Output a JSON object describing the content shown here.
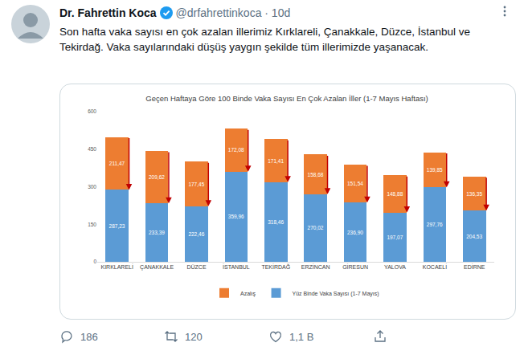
{
  "tweet": {
    "name": "Dr. Fahrettin Koca",
    "handle": "@drfahrettinkoca · 10d",
    "text": "Son hafta vaka sayısı en çok azalan illerimiz Kırklareli, Çanakkale, Düzce, İstanbul ve Tekirdağ. Vaka sayılarındaki düşüş yaygın şekilde tüm illerimizde yaşanacak.",
    "replies": "186",
    "retweets": "120",
    "likes": "1,1 B"
  },
  "chart_data": {
    "type": "bar",
    "stacked": true,
    "title": "Geçen Haftaya Göre 100 Binde Vaka Sayısı En Çok Azalan İller (1-7 Mayıs Haftası)",
    "categories": [
      "KIRKLARELİ",
      "ÇANAKKALE",
      "DÜZCE",
      "İSTANBUL",
      "TEKİRDAĞ",
      "ERZİNCAN",
      "GİRESUN",
      "YALOVA",
      "KOCAELİ",
      "EDİRNE"
    ],
    "series": [
      {
        "name": "Yüz Binde Vaka Sayısı (1-7 Mayıs)",
        "color": "#5b9bd5",
        "values": [
          287.23,
          233.39,
          222.46,
          359.96,
          318.46,
          270.02,
          236.9,
          197.07,
          297.76,
          204.53
        ],
        "value_labels": [
          "287,23",
          "233,39",
          "222,46",
          "359,96",
          "318,46",
          "270,02",
          "236,90",
          "197,07",
          "297,76",
          "204,53"
        ]
      },
      {
        "name": "Azalış",
        "color": "#ed7d31",
        "values": [
          211.47,
          209.62,
          177.45,
          172.08,
          171.41,
          158.68,
          151.54,
          148.88,
          139.85,
          136.35
        ],
        "value_labels": [
          "211,47",
          "209,62",
          "177,45",
          "172,08",
          "171,41",
          "158,68",
          "151,54",
          "148,88",
          "139,85",
          "136,35"
        ]
      }
    ],
    "ylim": [
      0,
      600
    ],
    "yticks": [
      0,
      150,
      300,
      450,
      600
    ],
    "grid": false,
    "legend": "bottom",
    "data_labels": true
  }
}
